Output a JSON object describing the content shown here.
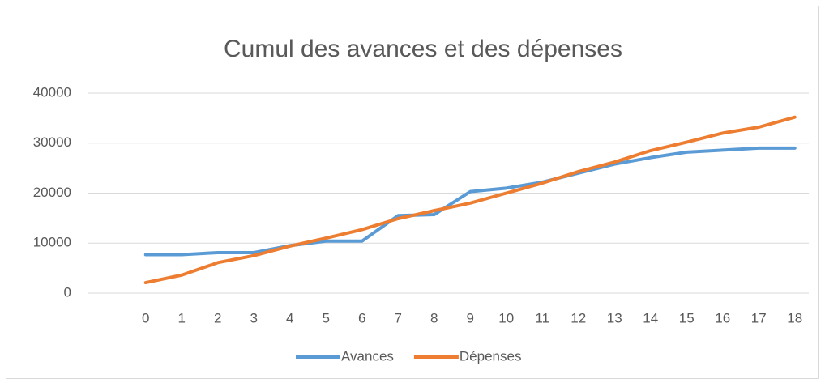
{
  "chart_data": {
    "type": "line",
    "title": "Cumul des avances et des dépenses",
    "categories": [
      null,
      "0",
      "1",
      "2",
      "3",
      "4",
      "5",
      "6",
      "7",
      "8",
      "9",
      "10",
      "11",
      "12",
      "13",
      "14",
      "15",
      "16",
      "17",
      "18"
    ],
    "series": [
      {
        "name": "Avances",
        "color": "#5b9bd5",
        "values": [
          null,
          7700,
          7700,
          8100,
          8100,
          9500,
          10400,
          10400,
          15500,
          15700,
          20300,
          21000,
          22200,
          24000,
          25800,
          27100,
          28200,
          28600,
          29000,
          29000
        ]
      },
      {
        "name": "Dépenses",
        "color": "#ed7d31",
        "values": [
          null,
          2100,
          3600,
          6100,
          7500,
          9400,
          11000,
          12700,
          14900,
          16500,
          18000,
          20000,
          22000,
          24300,
          26200,
          28500,
          30200,
          32000,
          33200,
          35200
        ]
      }
    ],
    "ylim": [
      0,
      40000
    ],
    "yticks": [
      0,
      10000,
      20000,
      30000,
      40000
    ],
    "grid": true,
    "legend": "bottom"
  }
}
